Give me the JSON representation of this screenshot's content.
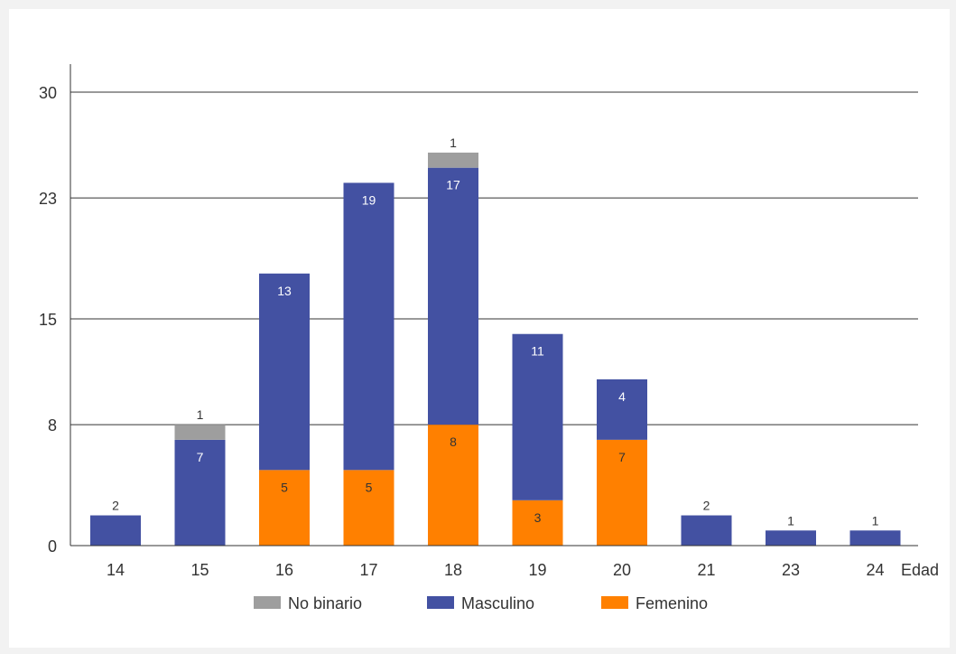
{
  "chart_data": {
    "type": "bar",
    "stacked": true,
    "title": "",
    "xlabel": "Edad",
    "ylabel": "",
    "categories": [
      "14",
      "15",
      "16",
      "17",
      "18",
      "19",
      "20",
      "21",
      "23",
      "24"
    ],
    "series": [
      {
        "name": "Femenino",
        "color": "#ff8000",
        "label_color": "#333333",
        "values": [
          0,
          0,
          5,
          5,
          8,
          3,
          7,
          0,
          0,
          0
        ]
      },
      {
        "name": "Masculino",
        "color": "#4351a2",
        "label_color": "#ffffff",
        "values": [
          2,
          7,
          13,
          19,
          17,
          11,
          4,
          2,
          1,
          1
        ]
      },
      {
        "name": "No binario",
        "color": "#9e9e9e",
        "label_color": "#333333",
        "values": [
          0,
          1,
          0,
          0,
          1,
          0,
          0,
          0,
          0,
          0
        ]
      }
    ],
    "yticks": [
      0,
      8,
      15,
      23,
      30
    ],
    "ylim": [
      0,
      30
    ],
    "grid": true,
    "legend_position": "bottom",
    "legend_order": [
      "No binario",
      "Masculino",
      "Femenino"
    ]
  }
}
